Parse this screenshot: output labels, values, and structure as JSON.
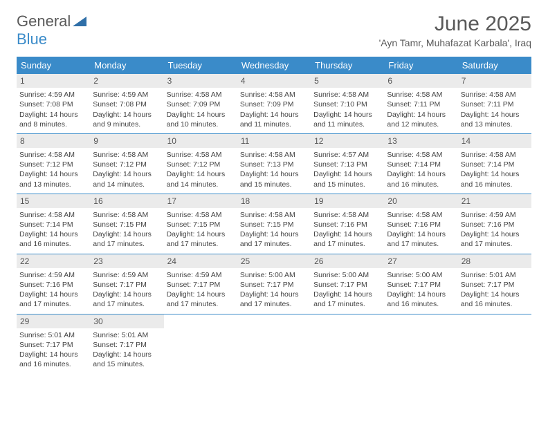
{
  "brand": {
    "top": "General",
    "bottom": "Blue"
  },
  "title": "June 2025",
  "location": "'Ayn Tamr, Muhafazat Karbala', Iraq",
  "colors": {
    "accent": "#3a8bc9",
    "header_text": "#ffffff",
    "daynum_bg": "#ebebeb",
    "body_text": "#444444",
    "title_text": "#595959"
  },
  "weekdays": [
    "Sunday",
    "Monday",
    "Tuesday",
    "Wednesday",
    "Thursday",
    "Friday",
    "Saturday"
  ],
  "weeks": [
    [
      {
        "day": "1",
        "sunrise": "4:59 AM",
        "sunset": "7:08 PM",
        "daylight_a": "Daylight: 14 hours",
        "daylight_b": "and 8 minutes."
      },
      {
        "day": "2",
        "sunrise": "4:59 AM",
        "sunset": "7:08 PM",
        "daylight_a": "Daylight: 14 hours",
        "daylight_b": "and 9 minutes."
      },
      {
        "day": "3",
        "sunrise": "4:58 AM",
        "sunset": "7:09 PM",
        "daylight_a": "Daylight: 14 hours",
        "daylight_b": "and 10 minutes."
      },
      {
        "day": "4",
        "sunrise": "4:58 AM",
        "sunset": "7:09 PM",
        "daylight_a": "Daylight: 14 hours",
        "daylight_b": "and 11 minutes."
      },
      {
        "day": "5",
        "sunrise": "4:58 AM",
        "sunset": "7:10 PM",
        "daylight_a": "Daylight: 14 hours",
        "daylight_b": "and 11 minutes."
      },
      {
        "day": "6",
        "sunrise": "4:58 AM",
        "sunset": "7:11 PM",
        "daylight_a": "Daylight: 14 hours",
        "daylight_b": "and 12 minutes."
      },
      {
        "day": "7",
        "sunrise": "4:58 AM",
        "sunset": "7:11 PM",
        "daylight_a": "Daylight: 14 hours",
        "daylight_b": "and 13 minutes."
      }
    ],
    [
      {
        "day": "8",
        "sunrise": "4:58 AM",
        "sunset": "7:12 PM",
        "daylight_a": "Daylight: 14 hours",
        "daylight_b": "and 13 minutes."
      },
      {
        "day": "9",
        "sunrise": "4:58 AM",
        "sunset": "7:12 PM",
        "daylight_a": "Daylight: 14 hours",
        "daylight_b": "and 14 minutes."
      },
      {
        "day": "10",
        "sunrise": "4:58 AM",
        "sunset": "7:12 PM",
        "daylight_a": "Daylight: 14 hours",
        "daylight_b": "and 14 minutes."
      },
      {
        "day": "11",
        "sunrise": "4:58 AM",
        "sunset": "7:13 PM",
        "daylight_a": "Daylight: 14 hours",
        "daylight_b": "and 15 minutes."
      },
      {
        "day": "12",
        "sunrise": "4:57 AM",
        "sunset": "7:13 PM",
        "daylight_a": "Daylight: 14 hours",
        "daylight_b": "and 15 minutes."
      },
      {
        "day": "13",
        "sunrise": "4:58 AM",
        "sunset": "7:14 PM",
        "daylight_a": "Daylight: 14 hours",
        "daylight_b": "and 16 minutes."
      },
      {
        "day": "14",
        "sunrise": "4:58 AM",
        "sunset": "7:14 PM",
        "daylight_a": "Daylight: 14 hours",
        "daylight_b": "and 16 minutes."
      }
    ],
    [
      {
        "day": "15",
        "sunrise": "4:58 AM",
        "sunset": "7:14 PM",
        "daylight_a": "Daylight: 14 hours",
        "daylight_b": "and 16 minutes."
      },
      {
        "day": "16",
        "sunrise": "4:58 AM",
        "sunset": "7:15 PM",
        "daylight_a": "Daylight: 14 hours",
        "daylight_b": "and 17 minutes."
      },
      {
        "day": "17",
        "sunrise": "4:58 AM",
        "sunset": "7:15 PM",
        "daylight_a": "Daylight: 14 hours",
        "daylight_b": "and 17 minutes."
      },
      {
        "day": "18",
        "sunrise": "4:58 AM",
        "sunset": "7:15 PM",
        "daylight_a": "Daylight: 14 hours",
        "daylight_b": "and 17 minutes."
      },
      {
        "day": "19",
        "sunrise": "4:58 AM",
        "sunset": "7:16 PM",
        "daylight_a": "Daylight: 14 hours",
        "daylight_b": "and 17 minutes."
      },
      {
        "day": "20",
        "sunrise": "4:58 AM",
        "sunset": "7:16 PM",
        "daylight_a": "Daylight: 14 hours",
        "daylight_b": "and 17 minutes."
      },
      {
        "day": "21",
        "sunrise": "4:59 AM",
        "sunset": "7:16 PM",
        "daylight_a": "Daylight: 14 hours",
        "daylight_b": "and 17 minutes."
      }
    ],
    [
      {
        "day": "22",
        "sunrise": "4:59 AM",
        "sunset": "7:16 PM",
        "daylight_a": "Daylight: 14 hours",
        "daylight_b": "and 17 minutes."
      },
      {
        "day": "23",
        "sunrise": "4:59 AM",
        "sunset": "7:17 PM",
        "daylight_a": "Daylight: 14 hours",
        "daylight_b": "and 17 minutes."
      },
      {
        "day": "24",
        "sunrise": "4:59 AM",
        "sunset": "7:17 PM",
        "daylight_a": "Daylight: 14 hours",
        "daylight_b": "and 17 minutes."
      },
      {
        "day": "25",
        "sunrise": "5:00 AM",
        "sunset": "7:17 PM",
        "daylight_a": "Daylight: 14 hours",
        "daylight_b": "and 17 minutes."
      },
      {
        "day": "26",
        "sunrise": "5:00 AM",
        "sunset": "7:17 PM",
        "daylight_a": "Daylight: 14 hours",
        "daylight_b": "and 17 minutes."
      },
      {
        "day": "27",
        "sunrise": "5:00 AM",
        "sunset": "7:17 PM",
        "daylight_a": "Daylight: 14 hours",
        "daylight_b": "and 16 minutes."
      },
      {
        "day": "28",
        "sunrise": "5:01 AM",
        "sunset": "7:17 PM",
        "daylight_a": "Daylight: 14 hours",
        "daylight_b": "and 16 minutes."
      }
    ],
    [
      {
        "day": "29",
        "sunrise": "5:01 AM",
        "sunset": "7:17 PM",
        "daylight_a": "Daylight: 14 hours",
        "daylight_b": "and 16 minutes."
      },
      {
        "day": "30",
        "sunrise": "5:01 AM",
        "sunset": "7:17 PM",
        "daylight_a": "Daylight: 14 hours",
        "daylight_b": "and 15 minutes."
      },
      null,
      null,
      null,
      null,
      null
    ]
  ],
  "labels": {
    "sunrise": "Sunrise: ",
    "sunset": "Sunset: "
  }
}
